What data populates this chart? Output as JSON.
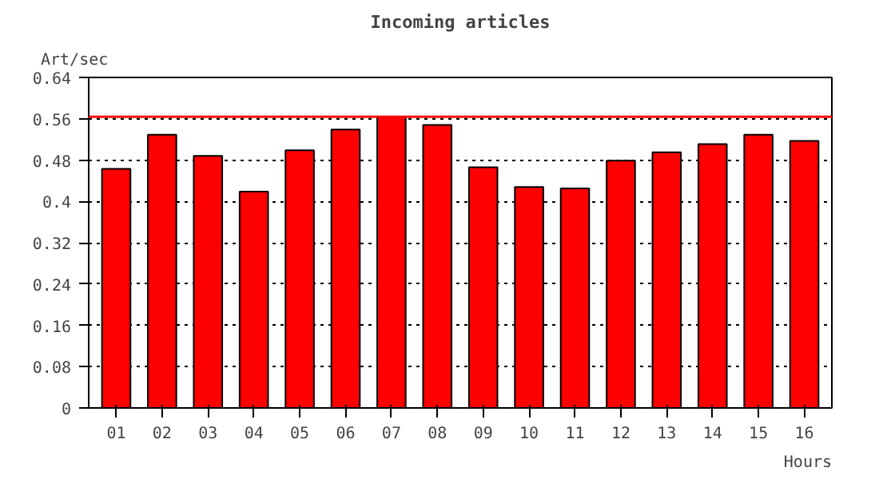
{
  "chart_data": {
    "type": "bar",
    "title": "Incoming articles",
    "ylabel": "Art/sec",
    "xlabel": "Hours",
    "categories": [
      "01",
      "02",
      "03",
      "04",
      "05",
      "06",
      "07",
      "08",
      "09",
      "10",
      "11",
      "12",
      "13",
      "14",
      "15",
      "16"
    ],
    "values": [
      0.463,
      0.529,
      0.488,
      0.419,
      0.499,
      0.539,
      0.564,
      0.548,
      0.466,
      0.428,
      0.425,
      0.479,
      0.495,
      0.511,
      0.529,
      0.517
    ],
    "color": "#ff0000",
    "ylim": [
      0,
      0.64
    ],
    "yticks": [
      0,
      0.08,
      0.16,
      0.24,
      0.32,
      0.4,
      0.48,
      0.56,
      0.64
    ],
    "grid": "y",
    "ref_lines": [
      {
        "axis": "y",
        "value": 0.564,
        "color": "#ff0000"
      }
    ]
  }
}
